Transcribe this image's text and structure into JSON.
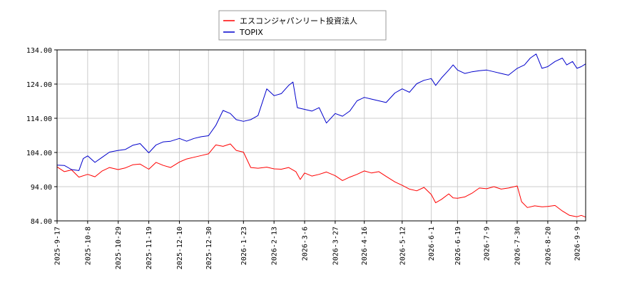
{
  "chart_data": {
    "type": "line",
    "title": "",
    "xlabel": "",
    "ylabel": "",
    "ylim": [
      84,
      134
    ],
    "grid": true,
    "legend_placement": "top-center",
    "y_ticks": [
      84,
      94,
      104,
      114,
      124,
      134
    ],
    "y_tick_labels": [
      "84.00",
      "94.00",
      "104.00",
      "114.00",
      "124.00",
      "134.00"
    ],
    "x_ticks": [
      "2025-9-17",
      "2025-10-8",
      "2025-10-29",
      "2025-11-19",
      "2025-12-10",
      "2025-12-30",
      "2026-1-23",
      "2026-2-13",
      "2026-3-6",
      "2026-3-27",
      "2026-4-16",
      "2026-5-12",
      "2026-6-1",
      "2026-6-19",
      "2026-7-9",
      "2026-7-30",
      "2026-8-20",
      "2026-9-9"
    ],
    "series": [
      {
        "name": "エスコンジャパンリート投資法人",
        "color": "#ff0000",
        "points": [
          [
            "2025-09-17",
            99.8
          ],
          [
            "2025-09-22",
            98.4
          ],
          [
            "2025-09-27",
            98.9
          ],
          [
            "2025-10-02",
            96.8
          ],
          [
            "2025-10-08",
            97.6
          ],
          [
            "2025-10-13",
            96.9
          ],
          [
            "2025-10-18",
            98.6
          ],
          [
            "2025-10-23",
            99.6
          ],
          [
            "2025-10-29",
            99.0
          ],
          [
            "2025-11-03",
            99.5
          ],
          [
            "2025-11-08",
            100.4
          ],
          [
            "2025-11-13",
            100.6
          ],
          [
            "2025-11-19",
            99.1
          ],
          [
            "2025-11-24",
            101.1
          ],
          [
            "2025-11-29",
            100.2
          ],
          [
            "2025-12-04",
            99.6
          ],
          [
            "2025-12-10",
            101.2
          ],
          [
            "2025-12-15",
            102.1
          ],
          [
            "2025-12-20",
            102.6
          ],
          [
            "2025-12-25",
            103.1
          ],
          [
            "2025-12-30",
            103.6
          ],
          [
            "2026-01-04",
            106.2
          ],
          [
            "2026-01-09",
            105.8
          ],
          [
            "2026-01-14",
            106.5
          ],
          [
            "2026-01-18",
            104.6
          ],
          [
            "2026-01-23",
            104.1
          ],
          [
            "2026-01-28",
            99.6
          ],
          [
            "2026-02-02",
            99.4
          ],
          [
            "2026-02-08",
            99.7
          ],
          [
            "2026-02-13",
            99.2
          ],
          [
            "2026-02-18",
            99.1
          ],
          [
            "2026-02-23",
            99.6
          ],
          [
            "2026-02-28",
            98.4
          ],
          [
            "2026-03-03",
            96.1
          ],
          [
            "2026-03-06",
            98.0
          ],
          [
            "2026-03-11",
            97.1
          ],
          [
            "2026-03-16",
            97.6
          ],
          [
            "2026-03-21",
            98.3
          ],
          [
            "2026-03-27",
            97.2
          ],
          [
            "2026-04-01",
            95.8
          ],
          [
            "2026-04-06",
            96.8
          ],
          [
            "2026-04-11",
            97.6
          ],
          [
            "2026-04-16",
            98.6
          ],
          [
            "2026-04-21",
            98.0
          ],
          [
            "2026-04-26",
            98.4
          ],
          [
            "2026-05-01",
            97.0
          ],
          [
            "2026-05-07",
            95.4
          ],
          [
            "2026-05-12",
            94.4
          ],
          [
            "2026-05-17",
            93.3
          ],
          [
            "2026-05-22",
            92.8
          ],
          [
            "2026-05-27",
            93.8
          ],
          [
            "2026-06-01",
            91.7
          ],
          [
            "2026-06-04",
            89.3
          ],
          [
            "2026-06-08",
            90.3
          ],
          [
            "2026-06-13",
            91.9
          ],
          [
            "2026-06-16",
            90.7
          ],
          [
            "2026-06-19",
            90.6
          ],
          [
            "2026-06-24",
            91.0
          ],
          [
            "2026-06-29",
            92.1
          ],
          [
            "2026-07-04",
            93.6
          ],
          [
            "2026-07-09",
            93.4
          ],
          [
            "2026-07-14",
            94.0
          ],
          [
            "2026-07-19",
            93.3
          ],
          [
            "2026-07-24",
            93.6
          ],
          [
            "2026-07-30",
            94.2
          ],
          [
            "2026-08-02",
            89.6
          ],
          [
            "2026-08-06",
            87.9
          ],
          [
            "2026-08-11",
            88.4
          ],
          [
            "2026-08-16",
            88.1
          ],
          [
            "2026-08-20",
            88.2
          ],
          [
            "2026-08-25",
            88.5
          ],
          [
            "2026-08-30",
            86.9
          ],
          [
            "2026-09-04",
            85.6
          ],
          [
            "2026-09-09",
            85.2
          ],
          [
            "2026-09-12",
            85.6
          ],
          [
            "2026-09-15",
            85.1
          ]
        ]
      },
      {
        "name": "TOPIX",
        "color": "#0000cc",
        "points": [
          [
            "2025-09-17",
            100.3
          ],
          [
            "2025-09-22",
            100.2
          ],
          [
            "2025-09-27",
            99.0
          ],
          [
            "2025-10-02",
            98.7
          ],
          [
            "2025-10-05",
            102.2
          ],
          [
            "2025-10-08",
            103.0
          ],
          [
            "2025-10-13",
            101.1
          ],
          [
            "2025-10-18",
            102.6
          ],
          [
            "2025-10-23",
            104.1
          ],
          [
            "2025-10-29",
            104.6
          ],
          [
            "2025-11-03",
            104.9
          ],
          [
            "2025-11-08",
            106.1
          ],
          [
            "2025-11-13",
            106.6
          ],
          [
            "2025-11-19",
            103.9
          ],
          [
            "2025-11-24",
            106.2
          ],
          [
            "2025-11-29",
            107.1
          ],
          [
            "2025-12-04",
            107.3
          ],
          [
            "2025-12-10",
            108.1
          ],
          [
            "2025-12-15",
            107.3
          ],
          [
            "2025-12-20",
            108.1
          ],
          [
            "2025-12-25",
            108.6
          ],
          [
            "2025-12-30",
            108.9
          ],
          [
            "2026-01-04",
            111.9
          ],
          [
            "2026-01-09",
            116.3
          ],
          [
            "2026-01-14",
            115.4
          ],
          [
            "2026-01-18",
            113.6
          ],
          [
            "2026-01-23",
            113.1
          ],
          [
            "2026-01-28",
            113.6
          ],
          [
            "2026-02-02",
            114.8
          ],
          [
            "2026-02-08",
            122.6
          ],
          [
            "2026-02-13",
            120.6
          ],
          [
            "2026-02-18",
            121.2
          ],
          [
            "2026-02-23",
            123.6
          ],
          [
            "2026-02-26",
            124.6
          ],
          [
            "2026-03-01",
            117.1
          ],
          [
            "2026-03-06",
            116.6
          ],
          [
            "2026-03-11",
            116.1
          ],
          [
            "2026-03-16",
            117.1
          ],
          [
            "2026-03-21",
            112.6
          ],
          [
            "2026-03-27",
            115.4
          ],
          [
            "2026-04-01",
            114.6
          ],
          [
            "2026-04-06",
            116.1
          ],
          [
            "2026-04-11",
            119.1
          ],
          [
            "2026-04-16",
            120.1
          ],
          [
            "2026-04-21",
            119.6
          ],
          [
            "2026-04-26",
            119.1
          ],
          [
            "2026-05-01",
            118.6
          ],
          [
            "2026-05-07",
            121.4
          ],
          [
            "2026-05-12",
            122.6
          ],
          [
            "2026-05-17",
            121.6
          ],
          [
            "2026-05-22",
            124.1
          ],
          [
            "2026-05-27",
            125.1
          ],
          [
            "2026-06-01",
            125.6
          ],
          [
            "2026-06-04",
            123.6
          ],
          [
            "2026-06-08",
            125.8
          ],
          [
            "2026-06-13",
            128.1
          ],
          [
            "2026-06-16",
            129.6
          ],
          [
            "2026-06-19",
            128.1
          ],
          [
            "2026-06-24",
            127.1
          ],
          [
            "2026-06-29",
            127.6
          ],
          [
            "2026-07-04",
            127.9
          ],
          [
            "2026-07-09",
            128.1
          ],
          [
            "2026-07-14",
            127.6
          ],
          [
            "2026-07-19",
            127.1
          ],
          [
            "2026-07-24",
            126.6
          ],
          [
            "2026-07-30",
            128.6
          ],
          [
            "2026-08-04",
            129.6
          ],
          [
            "2026-08-08",
            131.6
          ],
          [
            "2026-08-12",
            132.8
          ],
          [
            "2026-08-16",
            128.6
          ],
          [
            "2026-08-20",
            129.1
          ],
          [
            "2026-08-25",
            130.6
          ],
          [
            "2026-08-30",
            131.6
          ],
          [
            "2026-09-02",
            129.6
          ],
          [
            "2026-09-06",
            130.6
          ],
          [
            "2026-09-09",
            128.6
          ],
          [
            "2026-09-12",
            129.1
          ],
          [
            "2026-09-15",
            129.9
          ]
        ]
      }
    ]
  }
}
